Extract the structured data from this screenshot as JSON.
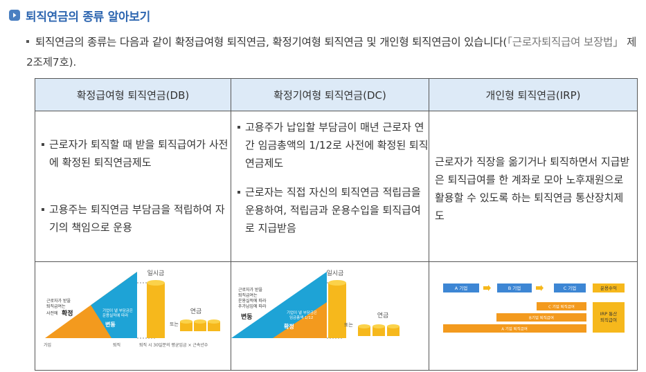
{
  "section_title": "퇴직연금의 종류 알아보기",
  "intro": {
    "text": "퇴직연금의 종류는 다음과 같이 확정급여형 퇴직연금, 확정기여형 퇴직연금 및 개인형 퇴직연금이 있습니다(",
    "ref_law": "「근로자퇴직급여 보장법」",
    "ref_article": " 제2조제7호)."
  },
  "table": {
    "headers": [
      "확정급여형 퇴직연금(DB)",
      "확정기여형 퇴직연금(DC)",
      "개인형 퇴직연금(IRP)"
    ],
    "db": {
      "items": [
        "근로자가 퇴직할 때 받을 퇴직급여가 사전에 확정된 퇴직연금제도",
        "고용주는 퇴직연금 부담금을 적립하여 자기의 책임으로 운용"
      ]
    },
    "dc": {
      "items": [
        "고용주가 납입할 부담금이 매년 근로자 연간 임금총액의 1/12로 사전에 확정된 퇴직연금제도",
        "근로자는 직접 자신의 퇴직연금 적립금을 운용하여, 적립금과 운용수입을 퇴직급여로 지급받음"
      ]
    },
    "irp": {
      "text": "근로자가 직장을 옮기거나 퇴직하면서 지급받은 퇴직급여를 한 계좌로 모아 노후재원으로 활용할 수 있도록 하는 퇴직연금 통산장치제도"
    }
  },
  "diagram_db": {
    "lump_sum": "일시금",
    "pension": "연금",
    "or": "또는",
    "left_text_1": "근로자가 받을",
    "left_text_2": "퇴직급여는",
    "left_text_3": "사전에",
    "fixed": "확정",
    "company_text_1": "기업이 낼 부담금은",
    "company_text_2": "운용실적에 따라",
    "variable": "변동",
    "x_company": "가입",
    "x_retire": "퇴직",
    "formula": "퇴직 시 30일분의 평균임금 × 근속년수"
  },
  "diagram_dc": {
    "lump_sum": "일시금",
    "pension": "연금",
    "or": "또는",
    "left_text_1": "근로자가 받을",
    "left_text_2": "퇴직급여는",
    "left_text_3": "운용실적에 따라",
    "left_text_4": "추가납입에 따라",
    "variable": "변동",
    "company_text_1": "기업이 낼 부담금은",
    "company_text_2": "임금총액 1/12",
    "fixed": "확정"
  },
  "diagram_irp": {
    "company_a": "A 기업",
    "company_b": "B 기업",
    "company_c": "C 기업",
    "return": "운용수익",
    "bar_c": "C 기업 퇴직급여",
    "bar_b": "B기업 퇴직급여",
    "bar_a": "A 기업 퇴직급여",
    "irp_total_1": "IRP 통산",
    "irp_total_2": "퇴직급여"
  }
}
